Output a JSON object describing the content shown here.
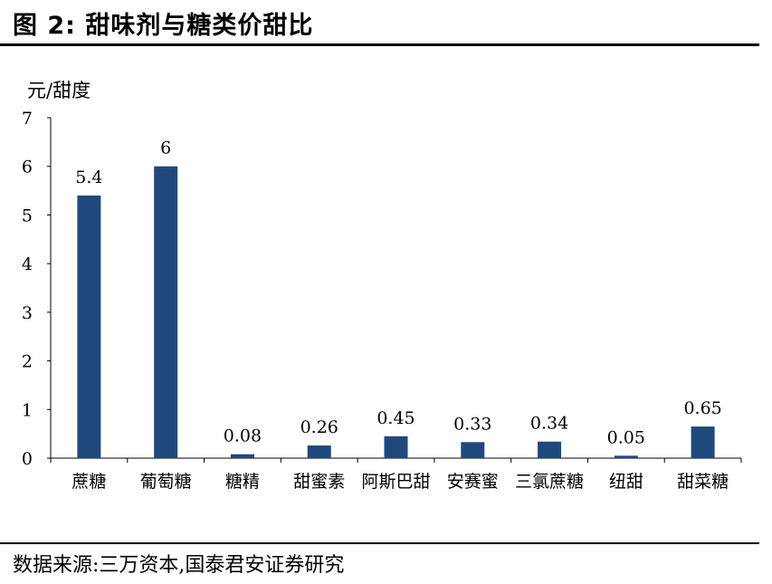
{
  "figure": {
    "title": "图 2:  甜味剂与糖类价甜比",
    "source": "数据来源:三万资本,国泰君安证券研究"
  },
  "chart_data": {
    "type": "bar",
    "title": "",
    "ylabel": "元/甜度",
    "xlabel": "",
    "categories": [
      "蔗糖",
      "葡萄糖",
      "糖精",
      "甜蜜素",
      "阿斯巴甜",
      "安赛蜜",
      "三氯蔗糖",
      "纽甜",
      "甜菜糖"
    ],
    "values": [
      5.4,
      6,
      0.08,
      0.26,
      0.45,
      0.33,
      0.34,
      0.05,
      0.65
    ],
    "value_labels": [
      "5.4",
      "6",
      "0.08",
      "0.26",
      "0.45",
      "0.33",
      "0.34",
      "0.05",
      "0.65"
    ],
    "ylim": [
      0,
      7
    ],
    "yticks": [
      0,
      1,
      2,
      3,
      4,
      5,
      6,
      7
    ],
    "grid": false,
    "legend": "none",
    "bar_color": "#1f497d"
  }
}
